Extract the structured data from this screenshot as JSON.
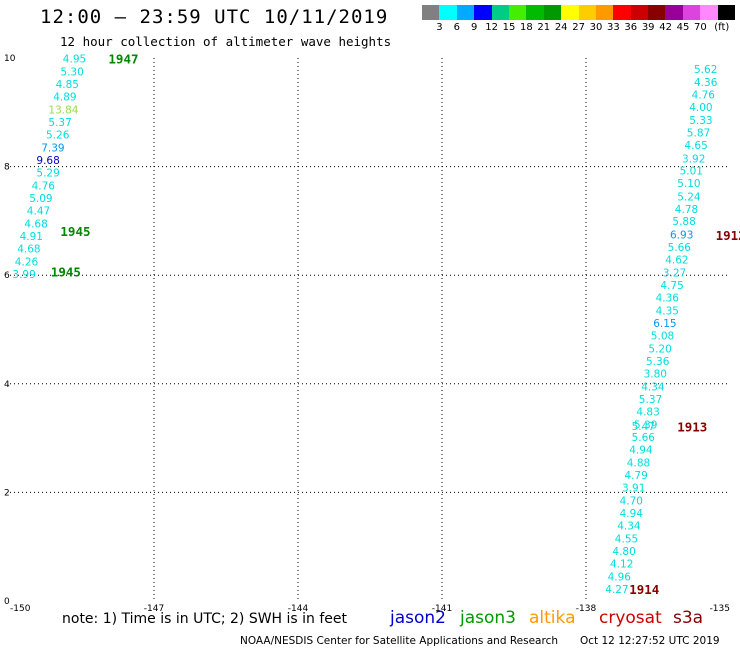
{
  "header": {
    "title": "12:00 – 23:59 UTC 10/11/2019",
    "subtitle": "12 hour collection of altimeter wave heights"
  },
  "color_scale": {
    "colors": [
      "#808080",
      "#00ffff",
      "#00aaff",
      "#0000ff",
      "#00cc88",
      "#44ee00",
      "#00bb00",
      "#009900",
      "#ffff00",
      "#ffcc00",
      "#ff9900",
      "#ff0000",
      "#cc0000",
      "#880000",
      "#990099",
      "#dd44dd",
      "#ff88ff",
      "#000000"
    ],
    "labels": [
      "3",
      "6",
      "9",
      "12",
      "15",
      "18",
      "21",
      "24",
      "27",
      "30",
      "33",
      "36",
      "39",
      "42",
      "45",
      "70",
      "(ft)"
    ]
  },
  "satellites": [
    {
      "name": "jason2",
      "color": "#0000cc"
    },
    {
      "name": "jason3",
      "color": "#009900"
    },
    {
      "name": "altika",
      "color": "#ff9900"
    },
    {
      "name": "cryosat",
      "color": "#cc0000"
    },
    {
      "name": "s3a",
      "color": "#880000"
    }
  ],
  "footer": {
    "note": "note: 1) Time is in UTC; 2) SWH is in feet",
    "credit": "NOAA/NESDIS Center for Satellite Applications and Research",
    "timestamp": "Oct 12 12:27:52 UTC 2019"
  },
  "chart_data": {
    "type": "scatter",
    "xlim": [
      -150,
      -135
    ],
    "ylim": [
      0,
      10
    ],
    "x_ticks": [
      "-150",
      "-147",
      "-144",
      "-141",
      "-138",
      "-135"
    ],
    "y_ticks": [
      "0",
      "2",
      "4",
      "6",
      "8",
      "10"
    ],
    "grid": true,
    "tracks": [
      {
        "points": [
          {
            "x": -148.9,
            "y": 9.92,
            "v": "4.95",
            "c": "#00dddd"
          },
          {
            "x": -148.95,
            "y": 9.68,
            "v": "5.30",
            "c": "#00dddd"
          },
          {
            "x": -149.05,
            "y": 9.45,
            "v": "4.85",
            "c": "#00dddd"
          },
          {
            "x": -149.1,
            "y": 9.22,
            "v": "4.89",
            "c": "#00dddd"
          },
          {
            "x": -149.2,
            "y": 8.98,
            "v": "13.84",
            "c": "#99dd44"
          },
          {
            "x": -149.2,
            "y": 8.75,
            "v": "5.37",
            "c": "#00dddd"
          },
          {
            "x": -149.25,
            "y": 8.52,
            "v": "5.26",
            "c": "#00dddd"
          },
          {
            "x": -149.35,
            "y": 8.28,
            "v": "7.39",
            "c": "#0099ee"
          },
          {
            "x": -149.45,
            "y": 8.05,
            "v": "9.68",
            "c": "#0000cc"
          },
          {
            "x": -149.45,
            "y": 7.82,
            "v": "5.29",
            "c": "#00dddd"
          },
          {
            "x": -149.55,
            "y": 7.58,
            "v": "4.76",
            "c": "#00dddd"
          },
          {
            "x": -149.6,
            "y": 7.35,
            "v": "5.09",
            "c": "#00dddd"
          },
          {
            "x": -149.65,
            "y": 7.12,
            "v": "4.47",
            "c": "#00dddd"
          },
          {
            "x": -149.7,
            "y": 6.88,
            "v": "4.68",
            "c": "#00dddd"
          },
          {
            "x": -149.8,
            "y": 6.65,
            "v": "4.91",
            "c": "#00dddd"
          },
          {
            "x": -149.85,
            "y": 6.42,
            "v": "4.68",
            "c": "#00dddd"
          },
          {
            "x": -149.9,
            "y": 6.18,
            "v": "4.26",
            "c": "#00dddd"
          },
          {
            "x": -149.95,
            "y": 5.95,
            "v": "3.99",
            "c": "#00dddd"
          }
        ],
        "labels": [
          {
            "text": "1947",
            "x": -147.95,
            "y": 9.9,
            "c": "#008800"
          },
          {
            "text": "1945",
            "x": -148.95,
            "y": 6.72,
            "c": "#008800"
          },
          {
            "text": "1945",
            "x": -149.15,
            "y": 5.98,
            "c": "#008800"
          }
        ]
      },
      {
        "points": [
          {
            "x": -135.75,
            "y": 9.72,
            "v": "5.62",
            "c": "#00dddd"
          },
          {
            "x": -135.75,
            "y": 9.48,
            "v": "4.36",
            "c": "#00dddd"
          },
          {
            "x": -135.8,
            "y": 9.25,
            "v": "4.76",
            "c": "#00dddd"
          },
          {
            "x": -135.85,
            "y": 9.02,
            "v": "4.00",
            "c": "#00dddd"
          },
          {
            "x": -135.85,
            "y": 8.78,
            "v": "5.33",
            "c": "#00dddd"
          },
          {
            "x": -135.9,
            "y": 8.55,
            "v": "5.87",
            "c": "#00dddd"
          },
          {
            "x": -135.95,
            "y": 8.32,
            "v": "4.65",
            "c": "#00dddd"
          },
          {
            "x": -136.0,
            "y": 8.08,
            "v": "3.92",
            "c": "#00dddd"
          },
          {
            "x": -136.05,
            "y": 7.85,
            "v": "5.01",
            "c": "#00dddd"
          },
          {
            "x": -136.1,
            "y": 7.62,
            "v": "5.10",
            "c": "#00dddd"
          },
          {
            "x": -136.1,
            "y": 7.38,
            "v": "5.24",
            "c": "#00dddd"
          },
          {
            "x": -136.15,
            "y": 7.15,
            "v": "4.78",
            "c": "#00dddd"
          },
          {
            "x": -136.2,
            "y": 6.92,
            "v": "5.88",
            "c": "#00dddd"
          },
          {
            "x": -136.25,
            "y": 6.68,
            "v": "6.93",
            "c": "#0099ee"
          },
          {
            "x": -136.3,
            "y": 6.45,
            "v": "5.66",
            "c": "#00dddd"
          },
          {
            "x": -136.35,
            "y": 6.22,
            "v": "4.62",
            "c": "#00dddd"
          },
          {
            "x": -136.4,
            "y": 5.98,
            "v": "3.27",
            "c": "#00dddd"
          },
          {
            "x": -136.45,
            "y": 5.75,
            "v": "4.75",
            "c": "#00dddd"
          },
          {
            "x": -136.55,
            "y": 5.52,
            "v": "4.36",
            "c": "#00dddd"
          },
          {
            "x": -136.55,
            "y": 5.28,
            "v": "4.35",
            "c": "#00dddd"
          },
          {
            "x": -136.6,
            "y": 5.05,
            "v": "6.15",
            "c": "#0099ee"
          },
          {
            "x": -136.65,
            "y": 4.82,
            "v": "5.08",
            "c": "#00dddd"
          },
          {
            "x": -136.7,
            "y": 4.58,
            "v": "5.20",
            "c": "#00dddd"
          },
          {
            "x": -136.75,
            "y": 4.35,
            "v": "5.36",
            "c": "#00dddd"
          },
          {
            "x": -136.8,
            "y": 4.12,
            "v": "3.80",
            "c": "#00dddd"
          },
          {
            "x": -136.85,
            "y": 3.88,
            "v": "4.34",
            "c": "#00dddd"
          },
          {
            "x": -136.9,
            "y": 3.65,
            "v": "5.37",
            "c": "#00dddd"
          },
          {
            "x": -136.95,
            "y": 3.42,
            "v": "4.83",
            "c": "#00dddd"
          },
          {
            "x": -137.0,
            "y": 3.18,
            "v": "5.39",
            "c": "#00dddd"
          },
          {
            "x": -137.05,
            "y": 3.15,
            "v": "5.47",
            "c": "#00dddd"
          },
          {
            "x": -137.05,
            "y": 2.95,
            "v": "5.66",
            "c": "#00dddd"
          },
          {
            "x": -137.1,
            "y": 2.72,
            "v": "4.94",
            "c": "#00dddd"
          },
          {
            "x": -137.15,
            "y": 2.48,
            "v": "4.88",
            "c": "#00dddd"
          },
          {
            "x": -137.2,
            "y": 2.25,
            "v": "4.79",
            "c": "#00dddd"
          },
          {
            "x": -137.25,
            "y": 2.02,
            "v": "3.91",
            "c": "#00dddd"
          },
          {
            "x": -137.3,
            "y": 1.78,
            "v": "4.70",
            "c": "#00dddd"
          },
          {
            "x": -137.3,
            "y": 1.55,
            "v": "4.94",
            "c": "#00dddd"
          },
          {
            "x": -137.35,
            "y": 1.32,
            "v": "4.34",
            "c": "#00dddd"
          },
          {
            "x": -137.4,
            "y": 1.08,
            "v": "4.55",
            "c": "#00dddd"
          },
          {
            "x": -137.45,
            "y": 0.85,
            "v": "4.80",
            "c": "#00dddd"
          },
          {
            "x": -137.5,
            "y": 0.62,
            "v": "4.12",
            "c": "#00dddd"
          },
          {
            "x": -137.55,
            "y": 0.38,
            "v": "4.96",
            "c": "#00dddd"
          },
          {
            "x": -137.6,
            "y": 0.15,
            "v": "4.27",
            "c": "#00dddd"
          }
        ],
        "labels": [
          {
            "text": "1912",
            "x": -135.3,
            "y": 6.65,
            "c": "#880000"
          },
          {
            "text": "1913",
            "x": -136.1,
            "y": 3.12,
            "c": "#880000"
          },
          {
            "text": "1914",
            "x": -137.1,
            "y": 0.13,
            "c": "#880000"
          }
        ]
      }
    ]
  }
}
